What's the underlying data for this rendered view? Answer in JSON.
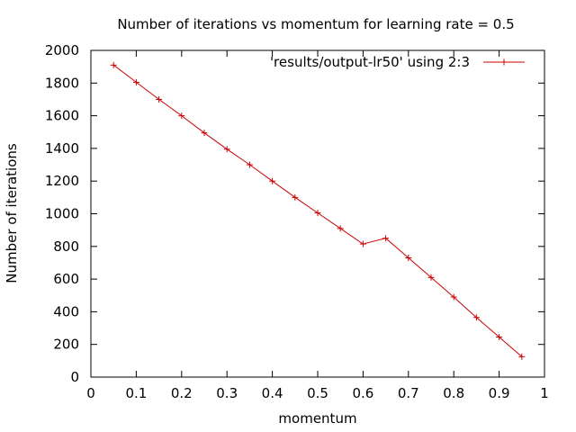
{
  "chart_data": {
    "type": "line",
    "title": "Number of iterations vs momentum for learning rate = 0.5",
    "xlabel": "momentum",
    "ylabel": "Number of iterations",
    "xlim": [
      0,
      1
    ],
    "ylim": [
      0,
      2000
    ],
    "xticks": [
      "0",
      "0.1",
      "0.2",
      "0.3",
      "0.4",
      "0.5",
      "0.6",
      "0.7",
      "0.8",
      "0.9",
      "1"
    ],
    "yticks": [
      "0",
      "200",
      "400",
      "600",
      "800",
      "1000",
      "1200",
      "1400",
      "1600",
      "1800",
      "2000"
    ],
    "grid": false,
    "legend_position": "top-right",
    "series": [
      {
        "name": "'results/output-lr50' using 2:3",
        "color": "#cc0000",
        "marker": "plus",
        "x": [
          0.05,
          0.1,
          0.15,
          0.2,
          0.25,
          0.3,
          0.35,
          0.4,
          0.45,
          0.5,
          0.55,
          0.6,
          0.65,
          0.7,
          0.75,
          0.8,
          0.85,
          0.9,
          0.95
        ],
        "y": [
          1910,
          1805,
          1700,
          1600,
          1495,
          1395,
          1300,
          1200,
          1100,
          1005,
          910,
          815,
          850,
          730,
          610,
          490,
          365,
          245,
          125
        ]
      }
    ]
  }
}
